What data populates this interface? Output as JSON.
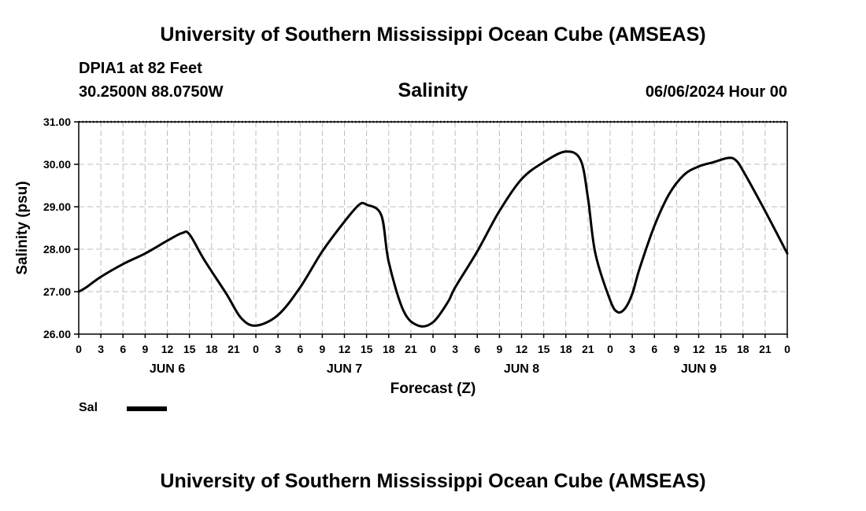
{
  "header": {
    "top_title": "University of Southern Mississippi Ocean Cube (AMSEAS)",
    "station": "DPIA1 at 82 Feet",
    "coords": "30.2500N  88.0750W",
    "chart_title": "Salinity",
    "datetime": "06/06/2024 Hour 00",
    "bottom_title": "University of Southern Mississippi Ocean Cube (AMSEAS)"
  },
  "legend": {
    "label": "Sal",
    "color": "#000000"
  },
  "chart_data": {
    "type": "line",
    "title": "Salinity",
    "xlabel": "Forecast (Z)",
    "ylabel": "Salinity (psu)",
    "ylim": [
      26.0,
      31.0
    ],
    "xlim_hours": [
      0,
      96
    ],
    "yticks": [
      "26.00",
      "27.00",
      "28.00",
      "29.00",
      "30.00",
      "31.00"
    ],
    "xtick_labels": [
      "0",
      "3",
      "6",
      "9",
      "12",
      "15",
      "18",
      "21",
      "0",
      "3",
      "6",
      "9",
      "12",
      "15",
      "18",
      "21",
      "0",
      "3",
      "6",
      "9",
      "12",
      "15",
      "18",
      "21",
      "0",
      "3",
      "6",
      "9",
      "12",
      "15",
      "18",
      "21",
      "0"
    ],
    "day_labels": [
      {
        "label": "JUN 6",
        "hour": 12
      },
      {
        "label": "JUN 7",
        "hour": 36
      },
      {
        "label": "JUN 8",
        "hour": 60
      },
      {
        "label": "JUN 9",
        "hour": 84
      }
    ],
    "grid": true,
    "series": [
      {
        "name": "Sal",
        "color": "#000000",
        "x": [
          0,
          1,
          3,
          6,
          9,
          12,
          14,
          15,
          17,
          20,
          22,
          24,
          27,
          30,
          33,
          36,
          38,
          39,
          41,
          42,
          44,
          46,
          48,
          50,
          51,
          54,
          57,
          60,
          63,
          66,
          68,
          69,
          70,
          72,
          73,
          74,
          75,
          76,
          78,
          80,
          82,
          84,
          86,
          88,
          89,
          90,
          93,
          96
        ],
        "y": [
          27.0,
          27.1,
          27.35,
          27.65,
          27.9,
          28.2,
          28.38,
          28.35,
          27.75,
          26.95,
          26.38,
          26.2,
          26.45,
          27.1,
          27.95,
          28.65,
          29.05,
          29.05,
          28.8,
          27.7,
          26.55,
          26.2,
          26.28,
          26.75,
          27.1,
          27.95,
          28.9,
          29.65,
          30.05,
          30.3,
          30.1,
          29.2,
          27.9,
          26.8,
          26.52,
          26.6,
          26.95,
          27.55,
          28.55,
          29.3,
          29.75,
          29.95,
          30.05,
          30.15,
          30.1,
          29.85,
          28.9,
          27.9
        ]
      }
    ]
  }
}
